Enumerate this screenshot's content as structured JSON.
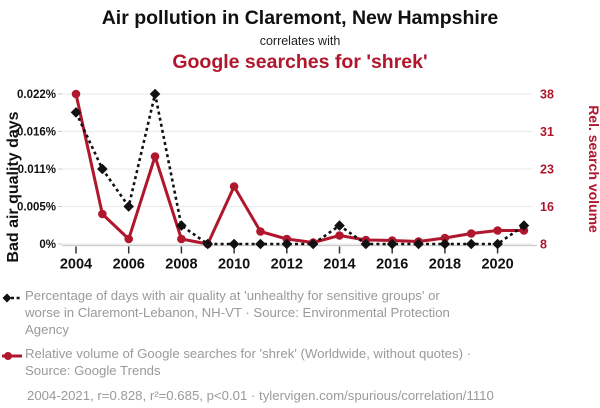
{
  "header": {
    "title": "Air pollution in Claremont, New Hampshire",
    "subtitle": "correlates with",
    "title2": "Google searches for 'shrek'"
  },
  "colors": {
    "accent_red": "#b0172d",
    "series_black": "#111111",
    "legend_gray": "#9a9a9a",
    "gridline": "#ececec",
    "axis_line": "#cccccc"
  },
  "chart_data": {
    "type": "line",
    "x": [
      2004,
      2005,
      2006,
      2007,
      2008,
      2009,
      2010,
      2011,
      2012,
      2013,
      2014,
      2015,
      2016,
      2017,
      2018,
      2019,
      2020,
      2021
    ],
    "x_ticks": [
      "2004",
      "2006",
      "2008",
      "2010",
      "2012",
      "2014",
      "2016",
      "2018",
      "2020"
    ],
    "series": [
      {
        "name": "Percentage of days with air quality at 'unhealthy for sensitive groups' or worse in Claremont-Lebanon, NH-VT",
        "axis": "left",
        "color": "#111111",
        "line_style": "dashed",
        "marker": "diamond",
        "values": [
          0.0193,
          0.011,
          0.0055,
          0.022,
          0.0027,
          0,
          0,
          0,
          0,
          0,
          0.0027,
          0,
          0,
          0,
          0,
          0,
          0,
          0.0027
        ]
      },
      {
        "name": "Relative volume of Google searches for 'shrek' (Worldwide, without quotes)",
        "axis": "right",
        "color": "#b0172d",
        "line_style": "solid",
        "marker": "circle",
        "values": [
          38,
          14,
          9,
          25.5,
          9,
          8,
          19.5,
          10.5,
          9,
          8.3,
          9.7,
          8.8,
          8.7,
          8.5,
          9.2,
          10.1,
          10.7,
          10.7
        ]
      }
    ],
    "left_axis": {
      "label": "Bad air quality days",
      "tick_labels": [
        "0.022%",
        "0.016%",
        "0.011%",
        "0.005%",
        "0%"
      ],
      "min": 0,
      "max": 0.022
    },
    "right_axis": {
      "label": "Rel. search volume",
      "tick_labels": [
        "38",
        "31",
        "23",
        "16",
        "8"
      ],
      "min": 8,
      "max": 38
    },
    "grid": true,
    "legend_position": "below"
  },
  "legend": [
    {
      "marker": "black-diamond-dashed",
      "text": "Percentage of days with air quality at 'unhealthy for sensitive groups' or worse in Claremont-Lebanon, NH-VT · Source: Environmental Protection Agency"
    },
    {
      "marker": "red-line-dot",
      "text": "Relative volume of Google searches for 'shrek' (Worldwide, without quotes) · Source: Google Trends"
    }
  ],
  "footer": {
    "text": "2004-2021, r=0.828, r²=0.685, p<0.01 · tylervigen.com/spurious/correlation/1110"
  }
}
